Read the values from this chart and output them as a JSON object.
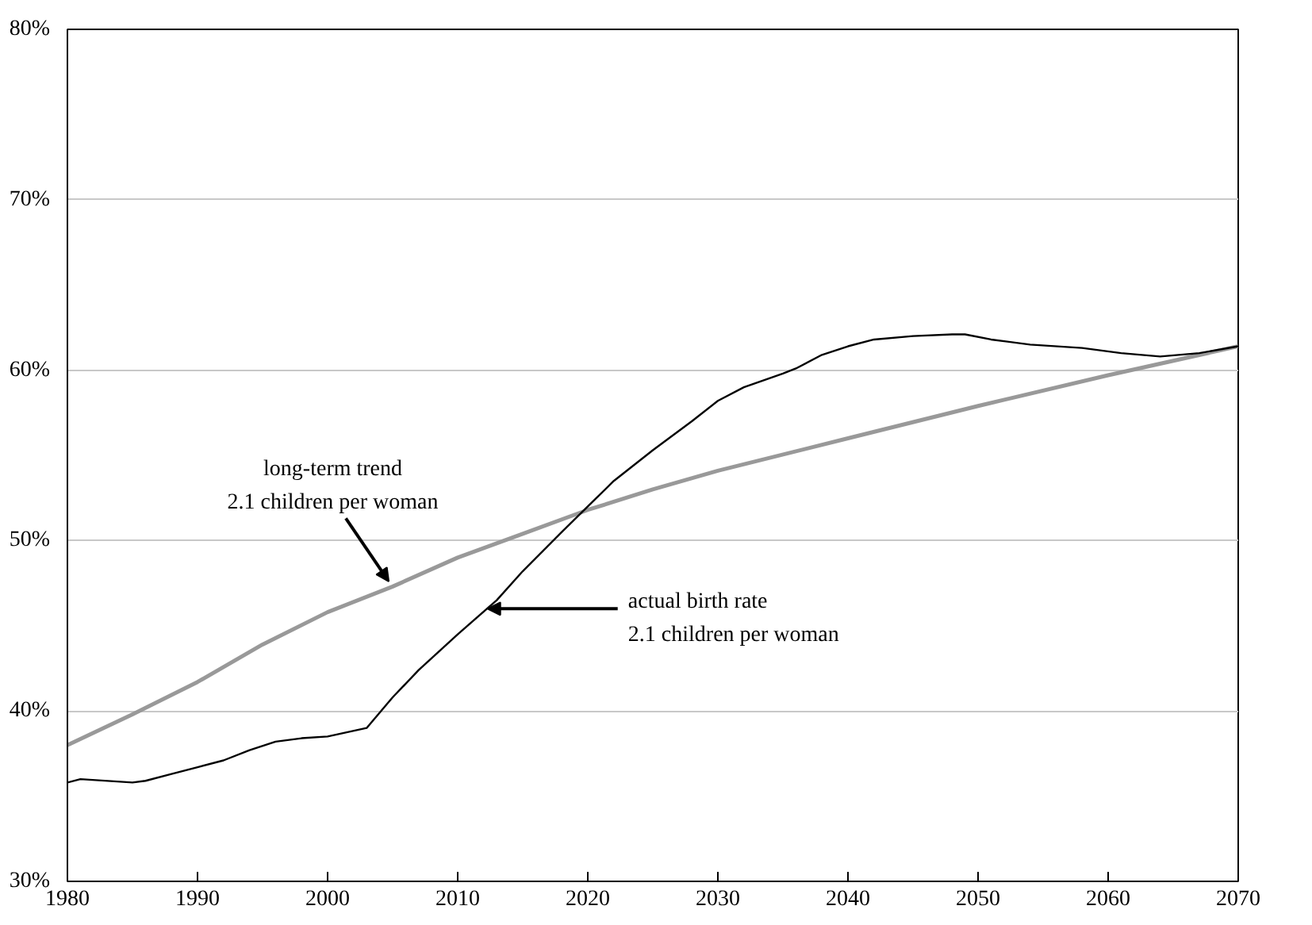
{
  "chart_data": {
    "type": "line",
    "xlim": [
      1980,
      2070
    ],
    "xticks": [
      1980,
      1990,
      2000,
      2010,
      2020,
      2030,
      2040,
      2050,
      2060,
      2070
    ],
    "ylim": [
      30,
      80
    ],
    "yticks": [
      {
        "value": 30,
        "label": "30%"
      },
      {
        "value": 40,
        "label": "40%"
      },
      {
        "value": 50,
        "label": "50%"
      },
      {
        "value": 60,
        "label": "60%"
      },
      {
        "value": 70,
        "label": "70%"
      },
      {
        "value": 80,
        "label": "80%"
      }
    ],
    "grid": "y",
    "series": [
      {
        "color": "#999999",
        "x": [
          1980,
          1985,
          1990,
          1995,
          2000,
          2005,
          2010,
          2015,
          2020,
          2025,
          2030,
          2040,
          2050,
          2060,
          2070
        ],
        "values": [
          38.0,
          39.8,
          41.7,
          43.9,
          45.8,
          47.3,
          49.0,
          50.4,
          51.8,
          53.0,
          54.1,
          56.0,
          57.9,
          59.7,
          61.4
        ]
      },
      {
        "color": "#000000",
        "x": [
          1980,
          1981,
          1985,
          1986,
          1988,
          1990,
          1992,
          1994,
          1996,
          1998,
          2000,
          2003,
          2005,
          2007,
          2010,
          2013,
          2015,
          2018,
          2020,
          2022,
          2025,
          2028,
          2030,
          2032,
          2035,
          2036,
          2038,
          2040,
          2042,
          2045,
          2048,
          2049,
          2051,
          2054,
          2058,
          2061,
          2064,
          2067,
          2070
        ],
        "values": [
          35.8,
          36.0,
          35.8,
          35.9,
          36.3,
          36.7,
          37.1,
          37.7,
          38.2,
          38.4,
          38.5,
          39.0,
          40.8,
          42.4,
          44.5,
          46.5,
          48.2,
          50.5,
          52.0,
          53.5,
          55.3,
          57.0,
          58.2,
          59.0,
          59.8,
          60.1,
          60.9,
          61.4,
          61.8,
          62.0,
          62.1,
          62.1,
          61.8,
          61.5,
          61.3,
          61.0,
          60.8,
          61.0,
          61.4
        ]
      }
    ],
    "annotations": [
      {
        "text": "long-term trend\n2.1 children per woman",
        "x": 2004.7,
        "y": 47.6
      },
      {
        "text": "actual birth rate\n2.1 children per woman",
        "x": 2012.3,
        "y": 46.0
      }
    ]
  }
}
